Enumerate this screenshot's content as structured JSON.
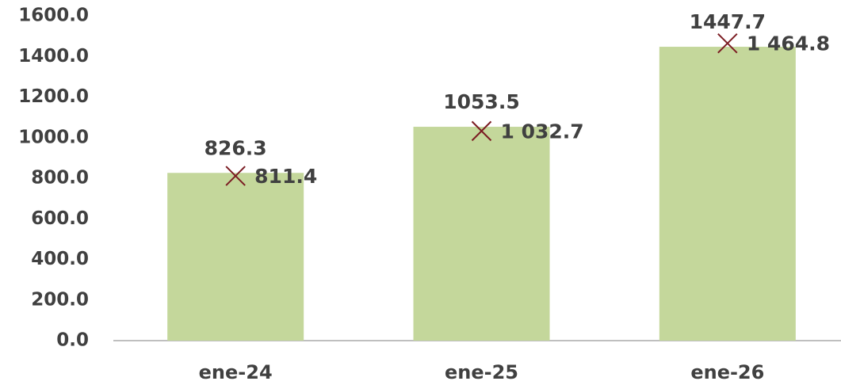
{
  "chart_data": {
    "type": "bar",
    "categories": [
      "ene-24",
      "ene-25",
      "ene-26"
    ],
    "series": [
      {
        "type": "bar",
        "color": "#c4d79b",
        "values": [
          826.3,
          1053.5,
          1447.7
        ]
      },
      {
        "type": "scatter",
        "marker": "x",
        "color": "#7b1c22",
        "values": [
          811.4,
          1032.7,
          1464.8
        ],
        "value_labels": [
          "811.4",
          "1 032.7",
          "1 464.8"
        ]
      }
    ],
    "ylim": [
      0,
      1600
    ],
    "yticks": [
      {
        "value": 0,
        "label": "0.0"
      },
      {
        "value": 200,
        "label": "200.0"
      },
      {
        "value": 400,
        "label": "400.0"
      },
      {
        "value": 600,
        "label": "600.0"
      },
      {
        "value": 800,
        "label": "800.0"
      },
      {
        "value": 1000,
        "label": "1000.0"
      },
      {
        "value": 1200,
        "label": "1200.0"
      },
      {
        "value": 1400,
        "label": "1400.0"
      },
      {
        "value": 1600,
        "label": "1600.0"
      }
    ],
    "grid": false
  }
}
